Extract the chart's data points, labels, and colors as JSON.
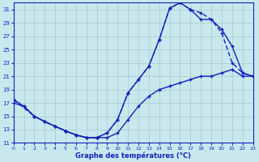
{
  "xlabel": "Graphe des températures (°C)",
  "bg_color": "#c8e8ee",
  "grid_color": "#a8c8cc",
  "line_color": "#1122bb",
  "xlim": [
    0,
    23
  ],
  "ylim": [
    11,
    32
  ],
  "xticks": [
    0,
    1,
    2,
    3,
    4,
    5,
    6,
    7,
    8,
    9,
    10,
    11,
    12,
    13,
    14,
    15,
    16,
    17,
    18,
    19,
    20,
    21,
    22,
    23
  ],
  "yticks": [
    11,
    13,
    15,
    17,
    19,
    21,
    23,
    25,
    27,
    29,
    31
  ],
  "curve1_x": [
    0,
    1,
    2,
    3,
    4,
    5,
    6,
    7,
    8,
    9,
    10,
    11,
    12,
    13,
    14,
    15,
    16,
    17,
    18,
    19,
    20,
    21,
    22,
    23
  ],
  "curve1_y": [
    17.5,
    16.5,
    15.0,
    14.2,
    13.5,
    12.8,
    12.2,
    11.8,
    11.8,
    12.5,
    14.5,
    18.5,
    20.5,
    22.5,
    26.5,
    31.2,
    32.0,
    31.0,
    29.5,
    29.5,
    28.0,
    25.5,
    21.5,
    21.0
  ],
  "curve2_x": [
    0,
    1,
    2,
    3,
    4,
    5,
    6,
    7,
    8,
    9,
    10,
    11,
    12,
    13,
    14,
    15,
    16,
    17,
    18,
    19,
    20,
    21,
    22,
    23
  ],
  "curve2_y": [
    17.0,
    16.5,
    15.0,
    14.2,
    13.5,
    12.8,
    12.2,
    11.8,
    11.8,
    11.8,
    12.5,
    14.5,
    16.5,
    18.0,
    19.0,
    19.5,
    20.0,
    20.5,
    21.0,
    21.0,
    21.5,
    22.0,
    21.0,
    21.0
  ],
  "curve3_x": [
    0,
    2,
    3,
    4,
    5,
    6,
    7,
    8,
    9,
    10,
    11,
    12,
    13,
    14,
    15,
    16,
    17,
    18,
    19,
    20,
    21,
    22,
    23
  ],
  "curve3_y": [
    17.5,
    15.0,
    14.2,
    13.5,
    12.8,
    12.2,
    11.8,
    11.8,
    12.5,
    14.5,
    18.5,
    20.5,
    22.5,
    26.5,
    31.2,
    32.0,
    31.0,
    30.5,
    29.5,
    27.5,
    23.0,
    21.5,
    21.0
  ],
  "lw": 1.0,
  "ms": 3.5
}
